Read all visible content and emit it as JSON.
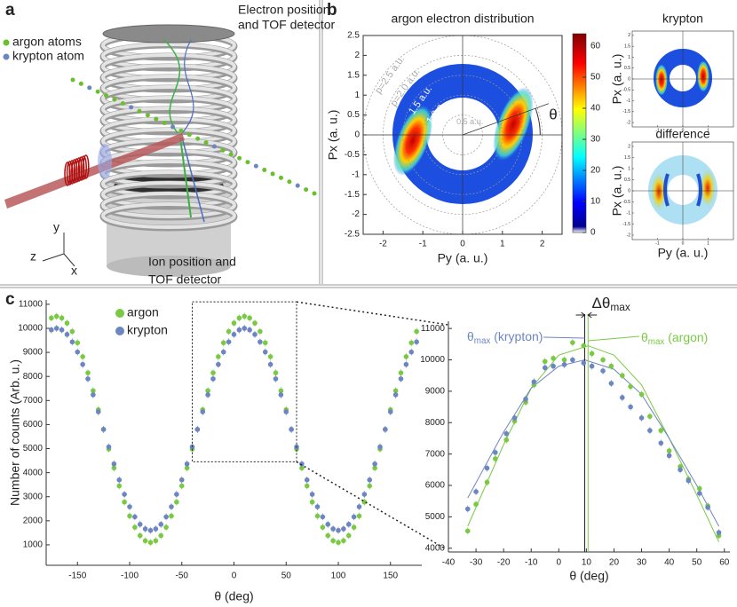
{
  "panel_a": {
    "letter": "a",
    "top_label": [
      "Electron position",
      "and TOF detector"
    ],
    "legend": [
      {
        "name": "argon atoms",
        "color": "#6abf2e"
      },
      {
        "name": "krypton atom",
        "color": "#6b86c0"
      }
    ],
    "bottom_label": [
      "Ion position and",
      "TOF detector"
    ],
    "axes": [
      "y",
      "z",
      "x"
    ]
  },
  "panel_b": {
    "letter": "b",
    "title": "argon electron distribution",
    "xlabel": "Py (a. u.)",
    "ylabel": "Px (a. u.)",
    "xlim": [
      -2.5,
      2.5
    ],
    "ylim": [
      -2.5,
      2.5
    ],
    "xticks": [
      -2,
      -1,
      0,
      1,
      2
    ],
    "yticks": [
      -2.5,
      -2,
      -1.5,
      -1,
      -0.5,
      0,
      0.5,
      1,
      1.5,
      2,
      2.5
    ],
    "clim": [
      0,
      64
    ],
    "cticks": [
      0,
      10,
      20,
      30,
      40,
      50,
      60
    ],
    "circles": [
      {
        "r": 2.5,
        "label": "p=2.5 a.u."
      },
      {
        "r": 2.0,
        "label": "p=2.0 a.u."
      },
      {
        "r": 1.5,
        "label": "1.5 a.u."
      },
      {
        "r": 1.0,
        "label": "1.0 a."
      },
      {
        "r": 0.5,
        "label": "0.5 a.u."
      }
    ],
    "angle_label": "θ",
    "insets": [
      {
        "title": "krypton",
        "ylabel": "Px (a. u.)",
        "xlim": [
          -2,
          2
        ],
        "ylim": [
          -2.2,
          2.2
        ],
        "xticks": [
          -1,
          0,
          1
        ],
        "yticks": [
          -2,
          -1.5,
          -1,
          -0.5,
          0,
          0.5,
          1,
          1.5,
          2
        ]
      },
      {
        "title": "difference",
        "ylabel": "Px (a. u.)",
        "xlabel": "Py (a. u.)",
        "xlim": [
          -2,
          2
        ],
        "ylim": [
          -2.2,
          2.2
        ],
        "xticks": [
          -1,
          0,
          1
        ],
        "yticks": [
          -2,
          -1.5,
          -1,
          -0.5,
          0,
          0.5,
          1,
          1.5,
          2
        ]
      }
    ]
  },
  "panel_c": {
    "letter": "c"
  },
  "chart_data": [
    {
      "type": "scatter",
      "xlabel": "θ (deg)",
      "ylabel": "Number of counts  (Arb. u.)",
      "xlim": [
        -180,
        180
      ],
      "ylim": [
        150,
        11180
      ],
      "xticks": [
        -150,
        -100,
        -50,
        0,
        50,
        100,
        150
      ],
      "yticks": [
        1000,
        2000,
        3000,
        4000,
        5000,
        6000,
        7000,
        8000,
        9000,
        10000,
        11000
      ],
      "x": [
        -175,
        -170,
        -165,
        -160,
        -155,
        -150,
        -145,
        -140,
        -135,
        -130,
        -125,
        -120,
        -115,
        -110,
        -105,
        -100,
        -95,
        -90,
        -85,
        -80,
        -75,
        -70,
        -65,
        -60,
        -55,
        -50,
        -45,
        -40,
        -35,
        -30,
        -25,
        -20,
        -15,
        -10,
        -5,
        0,
        5,
        10,
        15,
        20,
        25,
        30,
        35,
        40,
        45,
        50,
        55,
        60,
        65,
        70,
        75,
        80,
        85,
        90,
        95,
        100,
        105,
        110,
        115,
        120,
        125,
        130,
        135,
        140,
        145,
        150,
        155,
        160,
        165,
        170,
        175
      ],
      "series": [
        {
          "name": "argon",
          "color": "#7ac943",
          "values": [
            10429,
            10500,
            10429,
            10217,
            9870,
            9400,
            8821,
            8150,
            7407,
            6616,
            5800,
            4984,
            4193,
            3450,
            2779,
            2200,
            1730,
            1383,
            1171,
            1100,
            1171,
            1383,
            1730,
            2200,
            2779,
            3450,
            4193,
            4984,
            5800,
            6616,
            7407,
            8150,
            8821,
            9400,
            9870,
            10217,
            10429,
            10500,
            10429,
            10217,
            9870,
            9400,
            8821,
            8150,
            7407,
            6616,
            5800,
            4984,
            4193,
            3450,
            2779,
            2200,
            1730,
            1383,
            1171,
            1100,
            1171,
            1383,
            1730,
            2200,
            2779,
            3450,
            4193,
            4984,
            5800,
            6616,
            7407,
            8150,
            8821,
            9400,
            9870
          ]
        },
        {
          "name": "krypton",
          "color": "#6d86c2",
          "values": [
            9936,
            10000,
            9936,
            9747,
            9437,
            9017,
            8500,
            7900,
            7236,
            6529,
            5800,
            5071,
            4364,
            3700,
            3100,
            2583,
            2163,
            1853,
            1664,
            1600,
            1664,
            1853,
            2163,
            2583,
            3100,
            3700,
            4364,
            5071,
            5800,
            6529,
            7236,
            7900,
            8500,
            9017,
            9437,
            9747,
            9936,
            10000,
            9936,
            9747,
            9437,
            9017,
            8500,
            7900,
            7236,
            6529,
            5800,
            5071,
            4364,
            3700,
            3100,
            2583,
            2163,
            1853,
            1664,
            1600,
            1664,
            1853,
            2163,
            2583,
            3100,
            3700,
            4364,
            5071,
            5800,
            6529,
            7236,
            7900,
            8500,
            9017,
            9437
          ]
        }
      ],
      "zoom_box": {
        "xlim": [
          -40,
          60
        ],
        "ylim": [
          4450,
          11100
        ]
      }
    },
    {
      "type": "scatter",
      "xlabel": "θ (deg)",
      "xlim": [
        -40,
        62
      ],
      "ylim": [
        3880,
        11230
      ],
      "xticks": [
        -40,
        -30,
        -20,
        -10,
        0,
        10,
        20,
        30,
        40,
        50,
        60
      ],
      "yticks": [
        4000,
        5000,
        6000,
        7000,
        8000,
        9000,
        10000,
        11000
      ],
      "x": [
        -33,
        -30,
        -26,
        -23,
        -19,
        -16,
        -12,
        -9,
        -5,
        -2,
        2,
        5,
        9,
        12,
        16,
        19,
        23,
        26,
        30,
        33,
        37,
        40,
        44,
        47,
        51,
        54,
        58
      ],
      "series": [
        {
          "color": "#7ac943",
          "values": [
            4550,
            5400,
            6100,
            6850,
            7450,
            8050,
            8650,
            9200,
            9950,
            10050,
            10000,
            10550,
            10450,
            10200,
            10000,
            9800,
            9500,
            9150,
            8900,
            8200,
            7750,
            7100,
            6600,
            6200,
            5900,
            5350,
            4400
          ]
        },
        {
          "color": "#6d86c2",
          "values": [
            5250,
            5800,
            6550,
            7050,
            7650,
            8150,
            8750,
            9300,
            9750,
            9800,
            9850,
            10000,
            9900,
            9800,
            9650,
            9250,
            8800,
            8500,
            8150,
            7750,
            7350,
            6950,
            6500,
            6150,
            5750,
            5300,
            4500
          ]
        }
      ],
      "fits": [
        {
          "color": "#7ac943",
          "x": [
            -33,
            -20,
            -10,
            0,
            10.6,
            20,
            30,
            40,
            50,
            58
          ],
          "y": [
            4700,
            7300,
            9100,
            10150,
            10450,
            10150,
            9200,
            7500,
            5700,
            4200
          ]
        },
        {
          "color": "#6d86c2",
          "x": [
            -33,
            -20,
            -10,
            0,
            9.4,
            20,
            30,
            40,
            50,
            58
          ],
          "y": [
            5600,
            7700,
            9100,
            9800,
            10000,
            9700,
            8900,
            7500,
            6000,
            4700
          ]
        }
      ],
      "theta_max": [
        {
          "value": 9.4,
          "color": "#222222"
        },
        {
          "value": 10.6,
          "color": "#7ac943"
        }
      ],
      "delta_label": [
        "Δθ",
        "max"
      ],
      "krypton_label": [
        "θ",
        "max",
        " (krypton)"
      ],
      "argon_label": [
        "θ",
        "max",
        " (argon)"
      ]
    }
  ]
}
